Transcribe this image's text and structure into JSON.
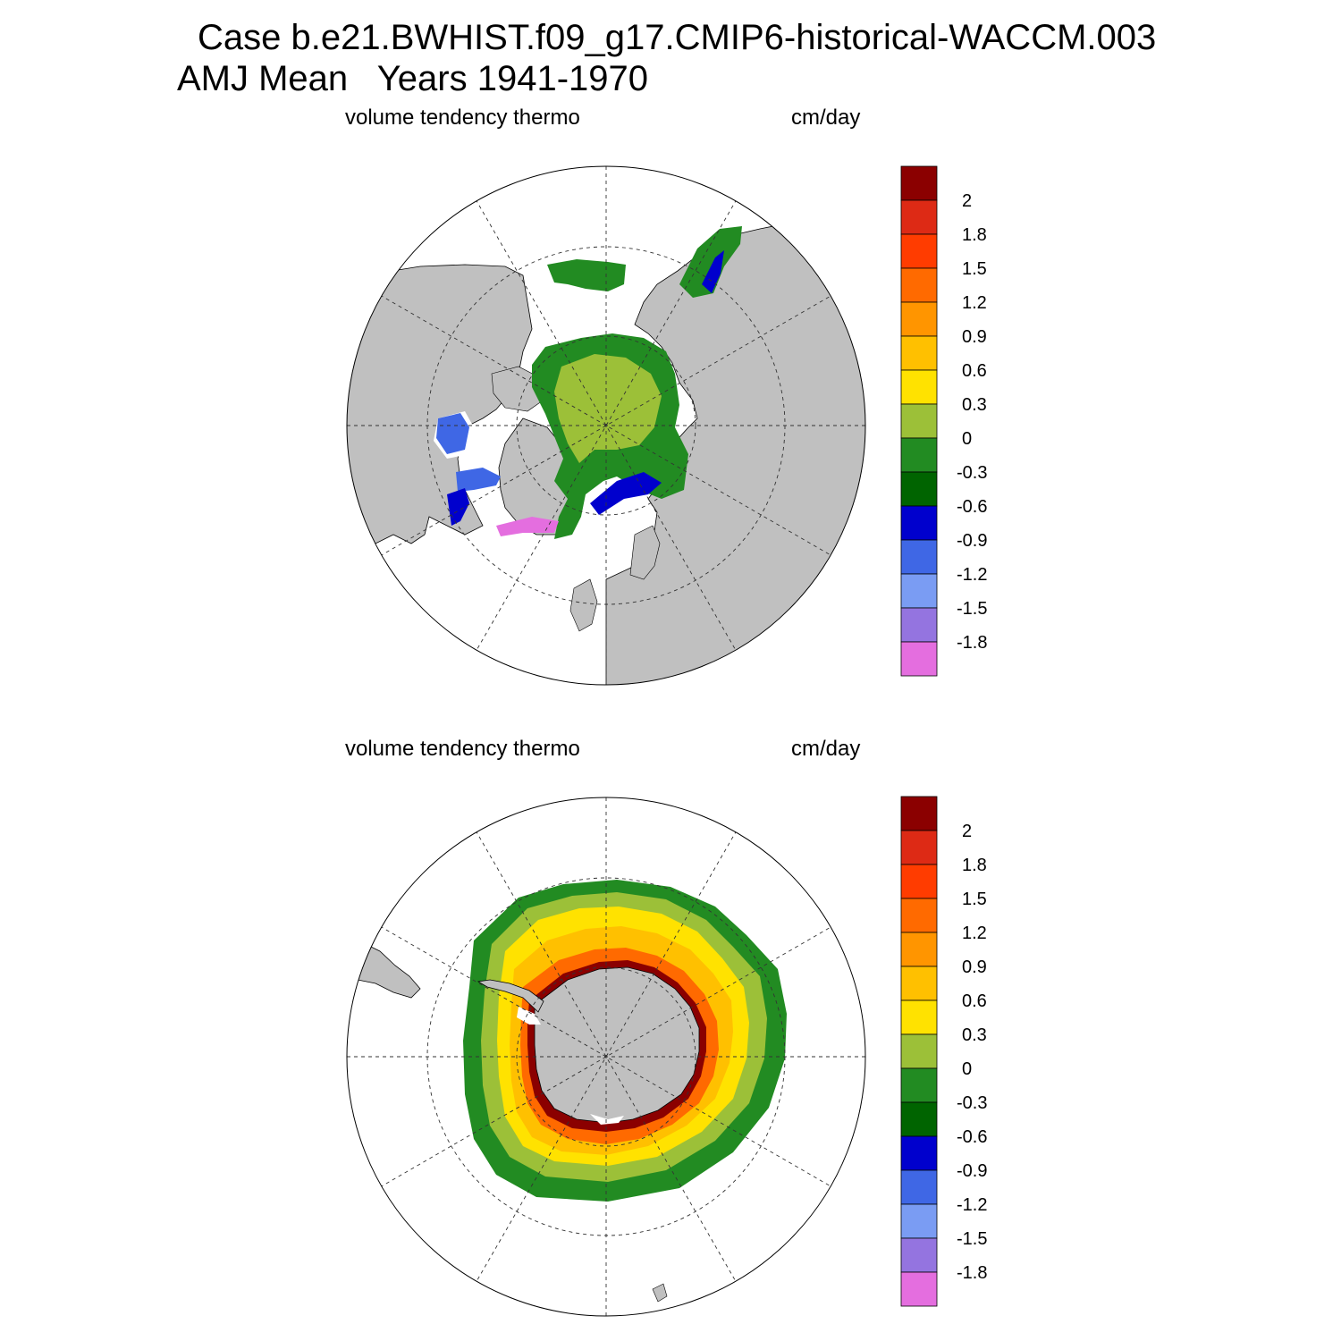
{
  "title": {
    "line1": "Case b.e21.BWHIST.f09_g17.CMIP6-historical-WACCM.003",
    "line2": "AMJ Mean   Years 1941-1970"
  },
  "panels": [
    {
      "hemisphere": "north",
      "variable": "volume tendency thermo",
      "units": "cm/day"
    },
    {
      "hemisphere": "south",
      "variable": "volume tendency thermo",
      "units": "cm/day"
    }
  ],
  "colorbar": {
    "labels": [
      "2",
      "1.8",
      "1.5",
      "1.2",
      "0.9",
      "0.6",
      "0.3",
      "0",
      "-0.3",
      "-0.6",
      "-0.9",
      "-1.2",
      "-1.5",
      "-1.8"
    ],
    "colors": [
      "#8b0000",
      "#dd2a15",
      "#ff3c00",
      "#ff6a00",
      "#ff9500",
      "#ffc000",
      "#ffe200",
      "#9cc038",
      "#228b22",
      "#006400",
      "#0000cd",
      "#3f67e5",
      "#7a9cf3",
      "#9474e0",
      "#e46edf"
    ]
  },
  "colors": {
    "land": "#c0c0c0",
    "ocean": "#ffffff",
    "outline": "#000000"
  }
}
